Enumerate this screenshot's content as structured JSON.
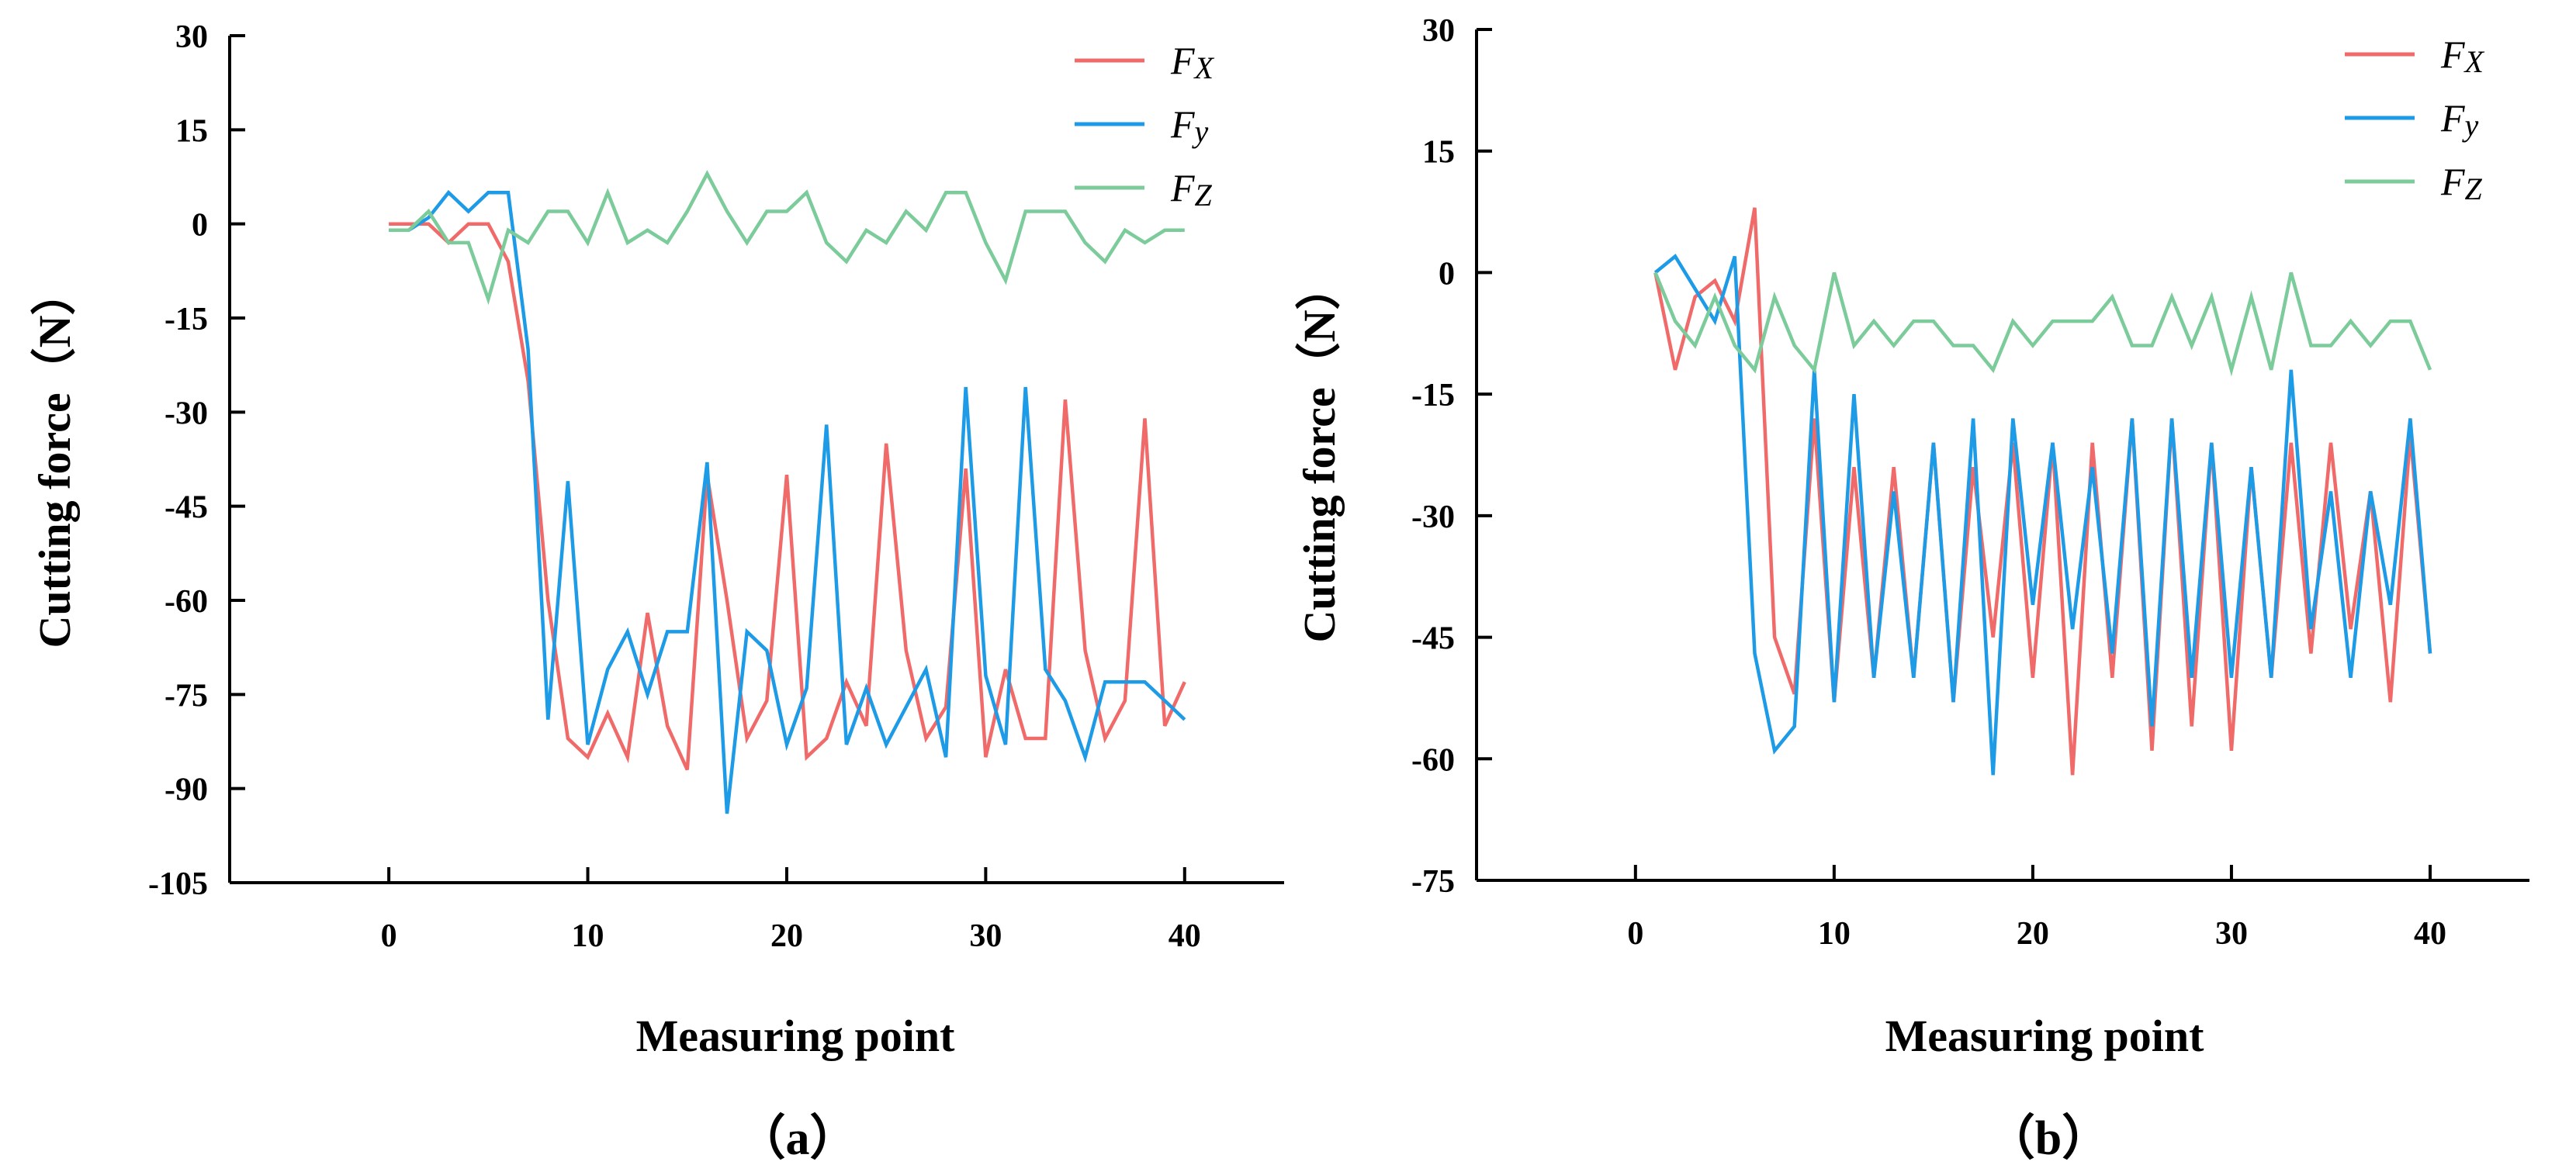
{
  "colors": {
    "Fx": "#f06a6a",
    "Fy": "#1e9be6",
    "Fz": "#7ccb9a",
    "axis": "#000000"
  },
  "chart_data": [
    {
      "type": "line",
      "panel_label": "（a）",
      "xlabel": "Measuring point",
      "ylabel": "Cutting force（N）",
      "xlim": [
        -8,
        45
      ],
      "ylim": [
        -105,
        30
      ],
      "xticks": [
        0,
        10,
        20,
        30,
        40
      ],
      "yticks": [
        30,
        15,
        0,
        -15,
        -30,
        -45,
        -60,
        -75,
        -90,
        -105
      ],
      "legend_position": "top-right",
      "series": [
        {
          "name": "Fx",
          "label": "Fx",
          "sub": "X",
          "x": [
            0,
            1,
            2,
            3,
            4,
            5,
            6,
            7,
            8,
            9,
            10,
            11,
            12,
            13,
            14,
            15,
            16,
            17,
            18,
            19,
            20,
            21,
            22,
            23,
            24,
            25,
            26,
            27,
            28,
            29,
            30,
            31,
            32,
            33,
            34,
            35,
            36,
            37,
            38,
            39,
            40
          ],
          "values": [
            0,
            0,
            0,
            -3,
            0,
            0,
            -6,
            -25,
            -60,
            -82,
            -85,
            -78,
            -85,
            -62,
            -80,
            -87,
            -40,
            -60,
            -82,
            -76,
            -40,
            -85,
            -82,
            -73,
            -80,
            -35,
            -68,
            -82,
            -77,
            -39,
            -85,
            -71,
            -82,
            -82,
            -28,
            -68,
            -82,
            -76,
            -31,
            -80,
            -73
          ]
        },
        {
          "name": "Fy",
          "label": "Fy",
          "sub": "y",
          "x": [
            0,
            1,
            2,
            3,
            4,
            5,
            6,
            7,
            8,
            9,
            10,
            11,
            12,
            13,
            14,
            15,
            16,
            17,
            18,
            19,
            20,
            21,
            22,
            23,
            24,
            25,
            26,
            27,
            28,
            29,
            30,
            31,
            32,
            33,
            34,
            35,
            36,
            37,
            38,
            39,
            40
          ],
          "values": [
            -1,
            -1,
            1,
            5,
            2,
            5,
            5,
            -20,
            -79,
            -41,
            -83,
            -71,
            -65,
            -75,
            -65,
            -65,
            -38,
            -94,
            -65,
            -68,
            -83,
            -74,
            -32,
            -83,
            -74,
            -83,
            -77,
            -71,
            -85,
            -26,
            -72,
            -83,
            -26,
            -71,
            -76,
            -85,
            -73,
            -73,
            -73,
            -76,
            -79
          ]
        },
        {
          "name": "Fz",
          "label": "Fz",
          "sub": "Z",
          "x": [
            0,
            1,
            2,
            3,
            4,
            5,
            6,
            7,
            8,
            9,
            10,
            11,
            12,
            13,
            14,
            15,
            16,
            17,
            18,
            19,
            20,
            21,
            22,
            23,
            24,
            25,
            26,
            27,
            28,
            29,
            30,
            31,
            32,
            33,
            34,
            35,
            36,
            37,
            38,
            39,
            40
          ],
          "values": [
            -1,
            -1,
            2,
            -3,
            -3,
            -12,
            -1,
            -3,
            2,
            2,
            -3,
            5,
            -3,
            -1,
            -3,
            2,
            8,
            2,
            -3,
            2,
            2,
            5,
            -3,
            -6,
            -1,
            -3,
            2,
            -1,
            5,
            5,
            -3,
            -9,
            2,
            2,
            2,
            -3,
            -6,
            -1,
            -3,
            -1,
            -1
          ]
        }
      ]
    },
    {
      "type": "line",
      "panel_label": "（b）",
      "xlabel": "Measuring point",
      "ylabel": "Cutting force（N）",
      "xlim": [
        -8,
        45
      ],
      "ylim": [
        -75,
        30
      ],
      "xticks": [
        0,
        10,
        20,
        30,
        40
      ],
      "yticks": [
        30,
        15,
        0,
        -15,
        -30,
        -45,
        -60,
        -75
      ],
      "legend_position": "top-right",
      "series": [
        {
          "name": "Fx",
          "label": "Fx",
          "sub": "X",
          "x": [
            1,
            2,
            3,
            4,
            5,
            6,
            7,
            8,
            9,
            10,
            11,
            12,
            13,
            14,
            15,
            16,
            17,
            18,
            19,
            20,
            21,
            22,
            23,
            24,
            25,
            26,
            27,
            28,
            29,
            30,
            31,
            32,
            33,
            34,
            35,
            36,
            37,
            38,
            39,
            40
          ],
          "values": [
            0,
            -12,
            -3,
            -1,
            -6,
            8,
            -45,
            -52,
            -18,
            -53,
            -24,
            -50,
            -24,
            -50,
            -21,
            -53,
            -24,
            -45,
            -21,
            -50,
            -21,
            -62,
            -21,
            -50,
            -18,
            -59,
            -18,
            -56,
            -21,
            -59,
            -24,
            -50,
            -21,
            -47,
            -21,
            -44,
            -27,
            -53,
            -20,
            -47
          ]
        },
        {
          "name": "Fy",
          "label": "Fy",
          "sub": "y",
          "x": [
            1,
            2,
            3,
            4,
            5,
            6,
            7,
            8,
            9,
            10,
            11,
            12,
            13,
            14,
            15,
            16,
            17,
            18,
            19,
            20,
            21,
            22,
            23,
            24,
            25,
            26,
            27,
            28,
            29,
            30,
            31,
            32,
            33,
            34,
            35,
            36,
            37,
            38,
            39,
            40
          ],
          "values": [
            0,
            2,
            -2,
            -6,
            2,
            -47,
            -59,
            -56,
            -12,
            -53,
            -15,
            -50,
            -27,
            -50,
            -21,
            -53,
            -18,
            -62,
            -18,
            -41,
            -21,
            -44,
            -24,
            -47,
            -18,
            -56,
            -18,
            -50,
            -21,
            -50,
            -24,
            -50,
            -12,
            -44,
            -27,
            -50,
            -27,
            -41,
            -18,
            -47
          ]
        },
        {
          "name": "Fz",
          "label": "Fz",
          "sub": "Z",
          "x": [
            1,
            2,
            3,
            4,
            5,
            6,
            7,
            8,
            9,
            10,
            11,
            12,
            13,
            14,
            15,
            16,
            17,
            18,
            19,
            20,
            21,
            22,
            23,
            24,
            25,
            26,
            27,
            28,
            29,
            30,
            31,
            32,
            33,
            34,
            35,
            36,
            37,
            38,
            39,
            40
          ],
          "values": [
            0,
            -6,
            -9,
            -3,
            -9,
            -12,
            -3,
            -9,
            -12,
            0,
            -9,
            -6,
            -9,
            -6,
            -6,
            -9,
            -9,
            -12,
            -6,
            -9,
            -6,
            -6,
            -6,
            -3,
            -9,
            -9,
            -3,
            -9,
            -3,
            -12,
            -3,
            -12,
            0,
            -9,
            -9,
            -6,
            -9,
            -6,
            -6,
            -12
          ]
        }
      ]
    }
  ]
}
